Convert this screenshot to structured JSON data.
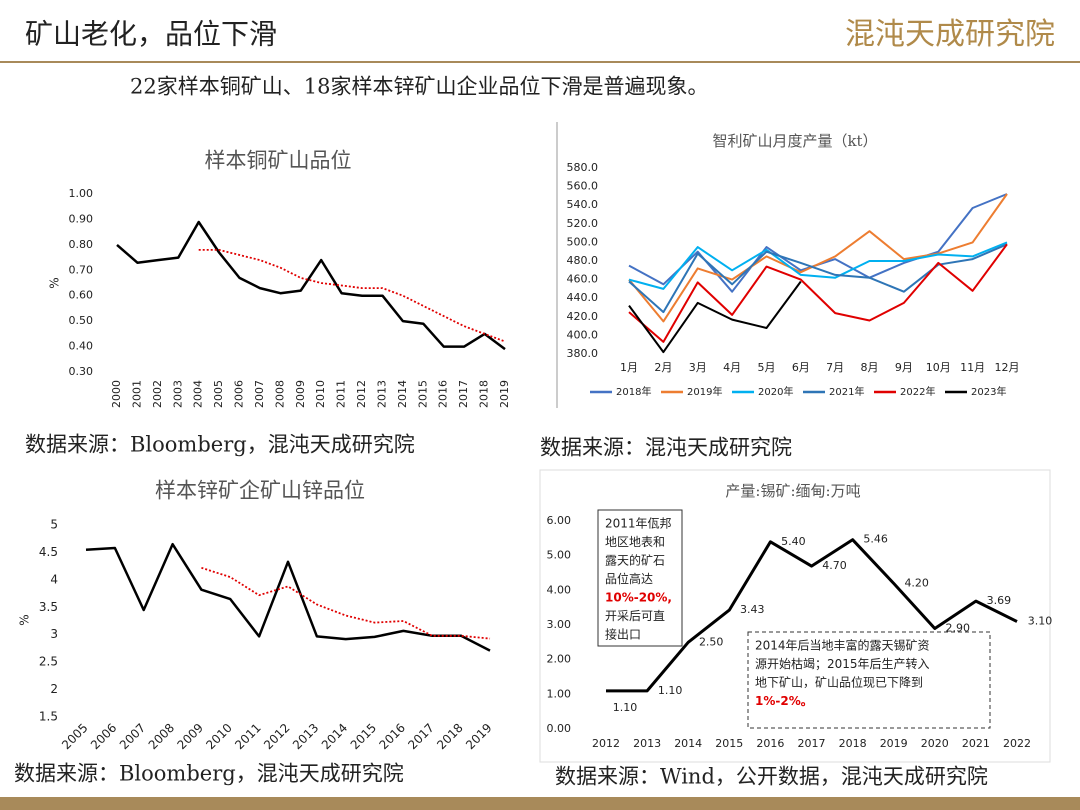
{
  "header": {
    "title": "矿山老化，品位下滑",
    "logo": "混沌天成研究院",
    "subtitle": "22家样本铜矿山、18家样本锌矿山企业品位下滑是普遍现象。"
  },
  "sources": [
    "数据来源：Bloomberg，混沌天成研究院",
    "数据来源：混沌天成研究院",
    "数据来源：Bloomberg，混沌天成研究院",
    "数据来源：Wind，公开数据，混沌天成研究院"
  ],
  "chart_data": [
    {
      "type": "line",
      "title": "样本铜矿山品位",
      "ylabel": "%",
      "categories": [
        "2000",
        "2001",
        "2002",
        "2003",
        "2004",
        "2005",
        "2006",
        "2007",
        "2008",
        "2009",
        "2010",
        "2011",
        "2012",
        "2013",
        "2014",
        "2015",
        "2016",
        "2017",
        "2018",
        "2019"
      ],
      "series": [
        {
          "color": "#000000",
          "style": "solid",
          "values": [
            0.8,
            0.73,
            0.74,
            0.75,
            0.89,
            0.77,
            0.67,
            0.63,
            0.61,
            0.62,
            0.74,
            0.61,
            0.6,
            0.6,
            0.5,
            0.49,
            0.4,
            0.4,
            0.45,
            0.39
          ]
        },
        {
          "color": "#e00000",
          "style": "dotted",
          "values": [
            null,
            null,
            null,
            null,
            0.78,
            0.78,
            0.76,
            0.74,
            0.71,
            0.67,
            0.65,
            0.64,
            0.63,
            0.63,
            0.6,
            0.56,
            0.52,
            0.48,
            0.45,
            0.42
          ]
        }
      ],
      "ylim": [
        0.3,
        1.0
      ],
      "yticks": [
        {
          "value": 0.3,
          "label": "0.30"
        },
        {
          "value": 0.4,
          "label": "0.40"
        },
        {
          "value": 0.5,
          "label": "0.50"
        },
        {
          "value": 0.6,
          "label": "0.60"
        },
        {
          "value": 0.7,
          "label": "0.70"
        },
        {
          "value": 0.8,
          "label": "0.80"
        },
        {
          "value": 0.9,
          "label": "0.90"
        },
        {
          "value": 1.0,
          "label": "1.00"
        }
      ]
    },
    {
      "type": "line",
      "title": "智利矿山月度产量（kt）",
      "legend": "bottom",
      "categories": [
        "1月",
        "2月",
        "3月",
        "4月",
        "5月",
        "6月",
        "7月",
        "8月",
        "9月",
        "10月",
        "11月",
        "12月"
      ],
      "series": [
        {
          "name": "2018年",
          "color": "#4472c4",
          "style": "solid",
          "values": [
            475,
            455,
            490,
            447,
            495,
            470,
            482,
            462,
            478,
            490,
            537,
            552
          ]
        },
        {
          "name": "2019年",
          "color": "#ed7d31",
          "style": "solid",
          "values": [
            460,
            415,
            472,
            460,
            485,
            468,
            485,
            512,
            482,
            488,
            500,
            552
          ]
        },
        {
          "name": "2020年",
          "color": "#00b0f0",
          "style": "solid",
          "values": [
            460,
            450,
            495,
            470,
            492,
            465,
            462,
            480,
            480,
            487,
            485,
            500
          ]
        },
        {
          "name": "2021年",
          "color": "#2e75b6",
          "style": "solid",
          "values": [
            458,
            425,
            488,
            455,
            490,
            478,
            465,
            462,
            447,
            476,
            482,
            498
          ]
        },
        {
          "name": "2022年",
          "color": "#e00000",
          "style": "solid",
          "values": [
            425,
            393,
            457,
            422,
            474,
            460,
            424,
            416,
            435,
            478,
            448,
            498
          ]
        },
        {
          "name": "2023年",
          "color": "#000000",
          "style": "solid",
          "values": [
            432,
            382,
            435,
            417,
            408,
            458,
            null,
            null,
            null,
            null,
            null,
            null
          ]
        }
      ],
      "ylim": [
        380,
        580
      ],
      "yticks": [
        {
          "value": 380,
          "label": "380.0"
        },
        {
          "value": 400,
          "label": "400.0"
        },
        {
          "value": 420,
          "label": "420.0"
        },
        {
          "value": 440,
          "label": "440.0"
        },
        {
          "value": 460,
          "label": "460.0"
        },
        {
          "value": 480,
          "label": "480.0"
        },
        {
          "value": 500,
          "label": "500.0"
        },
        {
          "value": 520,
          "label": "520.0"
        },
        {
          "value": 540,
          "label": "540.0"
        },
        {
          "value": 560,
          "label": "560.0"
        },
        {
          "value": 580,
          "label": "580.0"
        }
      ]
    },
    {
      "type": "line",
      "title": "样本锌矿企矿山锌品位",
      "ylabel": "%",
      "categories": [
        "2005",
        "2006",
        "2007",
        "2008",
        "2009",
        "2010",
        "2011",
        "2012",
        "2013",
        "2014",
        "2015",
        "2016",
        "2017",
        "2018",
        "2019"
      ],
      "series": [
        {
          "color": "#000000",
          "style": "solid",
          "values": [
            4.55,
            4.58,
            3.45,
            4.65,
            3.82,
            3.65,
            2.97,
            4.33,
            2.97,
            2.92,
            2.96,
            3.07,
            2.98,
            2.98,
            2.71
          ]
        },
        {
          "color": "#e00000",
          "style": "dotted",
          "values": [
            null,
            null,
            null,
            null,
            4.22,
            4.05,
            3.72,
            3.88,
            3.55,
            3.35,
            3.22,
            3.25,
            2.98,
            2.98,
            2.93
          ]
        }
      ],
      "ylim": [
        1.5,
        5
      ],
      "yticks": [
        1.5,
        2,
        2.5,
        3,
        3.5,
        4,
        4.5,
        5
      ]
    },
    {
      "type": "line",
      "title": "产量:锡矿:缅甸:万吨",
      "categories": [
        "2012",
        "2013",
        "2014",
        "2015",
        "2016",
        "2017",
        "2018",
        "2019",
        "2020",
        "2021",
        "2022"
      ],
      "series": [
        {
          "color": "#000000",
          "style": "solid",
          "values": [
            1.1,
            1.1,
            2.5,
            3.43,
            5.4,
            4.7,
            5.46,
            4.2,
            2.9,
            3.69,
            3.1
          ],
          "value_labels": [
            "1.10",
            "1.10",
            "2.50",
            "3.43",
            "5.40",
            "4.70",
            "5.46",
            "4.20",
            "2.90",
            "3.69",
            "3.10"
          ]
        }
      ],
      "ylim": [
        0,
        6
      ],
      "yticks": [
        {
          "value": 0,
          "label": "0.00"
        },
        {
          "value": 1,
          "label": "1.00"
        },
        {
          "value": 2,
          "label": "2.00"
        },
        {
          "value": 3,
          "label": "3.00"
        },
        {
          "value": 4,
          "label": "4.00"
        },
        {
          "value": 5,
          "label": "5.00"
        },
        {
          "value": 6,
          "label": "6.00"
        }
      ],
      "annotations": [
        {
          "lines": [
            {
              "text": "2011年佤邦"
            },
            {
              "text": "地区地表和"
            },
            {
              "text": "露天的矿石"
            },
            {
              "text": "品位高达"
            },
            {
              "text": "10%-20%,",
              "color": "#e00000"
            },
            {
              "text": "开采后可直"
            },
            {
              "text": "接出口"
            }
          ]
        },
        {
          "lines": [
            {
              "text": "2014年后当地丰富的露天锡矿资"
            },
            {
              "text": "源开始枯竭；2015年后生产转入"
            },
            {
              "text": "地下矿山，矿山品位现已下降到"
            },
            {
              "text": "1%-2%。",
              "color": "#e00000"
            }
          ]
        }
      ]
    }
  ]
}
